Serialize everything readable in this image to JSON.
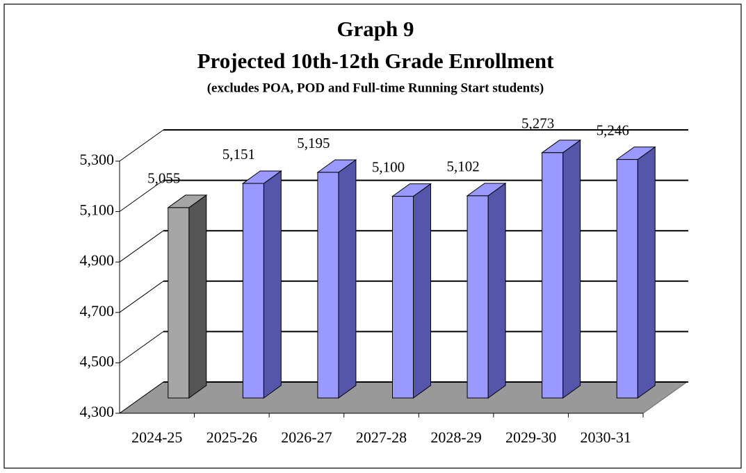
{
  "chart_data": {
    "type": "bar3d",
    "title": "Graph 9",
    "subtitle": "Projected 10th-12th Grade Enrollment",
    "note": "(excludes POA, POD and Full-time Running Start students)",
    "categories": [
      "2024-25",
      "2025-26",
      "2026-27",
      "2027-28",
      "2028-29",
      "2029-30",
      "2030-31"
    ],
    "values": [
      5055,
      5151,
      5195,
      5100,
      5102,
      5273,
      5246
    ],
    "value_labels": [
      "5,055",
      "5,151",
      "5,195",
      "5,100",
      "5,102",
      "5,273",
      "5,246"
    ],
    "colors": [
      "#a6a6a6",
      "#9999ff",
      "#9999ff",
      "#9999ff",
      "#9999ff",
      "#9999ff",
      "#9999ff"
    ],
    "ylim": [
      4300,
      5300
    ],
    "yticks": [
      {
        "value": 4300,
        "label": "4,300"
      },
      {
        "value": 4500,
        "label": "4,500"
      },
      {
        "value": 4700,
        "label": "4,700"
      },
      {
        "value": 4900,
        "label": "4,900"
      },
      {
        "value": 5100,
        "label": "5,100"
      },
      {
        "value": 5300,
        "label": "5,300"
      }
    ],
    "grid": true
  }
}
